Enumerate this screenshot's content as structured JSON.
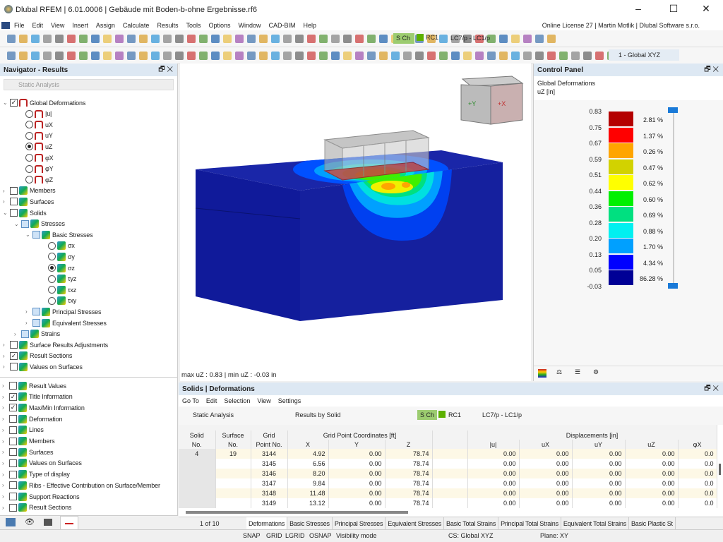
{
  "window": {
    "title": "Dlubal RFEM | 6.01.0006 | Gebäude mit Boden-b-ohne Ergebnisse.rf6",
    "minimize": "–",
    "maximize": "☐",
    "close": "✕"
  },
  "menu": {
    "items": [
      "File",
      "Edit",
      "View",
      "Insert",
      "Assign",
      "Calculate",
      "Results",
      "Tools",
      "Options",
      "Window",
      "CAD-BIM",
      "Help"
    ],
    "license": "Online License 27 | Martin Motlik | Dlubal Software s.r.o."
  },
  "toolbar": {
    "design_situation": "S Ch",
    "combo": "RC1",
    "load_case": "LC7/p - LC1/p",
    "coord_system": "1 - Global XYZ"
  },
  "navigator": {
    "title": "Navigator - Results",
    "analysis": "Static Analysis",
    "items": [
      {
        "label": "Global Deformations",
        "type": "check",
        "checked": true,
        "expanded": true,
        "level": 0,
        "icon": "deformation-icon"
      },
      {
        "label": "|u|",
        "type": "radio",
        "level": 1,
        "icon": "deformation-icon"
      },
      {
        "label": "uX",
        "type": "radio",
        "level": 1,
        "icon": "deformation-icon"
      },
      {
        "label": "uY",
        "type": "radio",
        "level": 1,
        "icon": "deformation-icon"
      },
      {
        "label": "uZ",
        "type": "radio",
        "checked": true,
        "level": 1,
        "icon": "deformation-icon"
      },
      {
        "label": "φX",
        "type": "radio",
        "level": 1,
        "icon": "deformation-icon"
      },
      {
        "label": "φY",
        "type": "radio",
        "level": 1,
        "icon": "deformation-icon"
      },
      {
        "label": "φZ",
        "type": "radio",
        "level": 1,
        "icon": "deformation-icon"
      },
      {
        "label": "Members",
        "type": "check",
        "collapsed": true,
        "level": 0,
        "icon": "members-icon"
      },
      {
        "label": "Surfaces",
        "type": "check",
        "collapsed": true,
        "level": 0,
        "icon": "surfaces-icon"
      },
      {
        "label": "Solids",
        "type": "check",
        "expanded": true,
        "level": 0,
        "icon": "solid-icon"
      },
      {
        "label": "Stresses",
        "type": "check",
        "blue": true,
        "expanded": true,
        "level": 1,
        "icon": "solid-icon"
      },
      {
        "label": "Basic Stresses",
        "type": "check",
        "blue": true,
        "expanded": true,
        "level": 2,
        "icon": "solid-icon"
      },
      {
        "label": "σx",
        "type": "radio",
        "level": 3,
        "icon": "solid-icon"
      },
      {
        "label": "σy",
        "type": "radio",
        "level": 3,
        "icon": "solid-icon"
      },
      {
        "label": "σz",
        "type": "radio",
        "checked": true,
        "level": 3,
        "icon": "solid-icon"
      },
      {
        "label": "τyz",
        "type": "radio",
        "level": 3,
        "icon": "solid-icon"
      },
      {
        "label": "τxz",
        "type": "radio",
        "level": 3,
        "icon": "solid-icon"
      },
      {
        "label": "τxy",
        "type": "radio",
        "level": 3,
        "icon": "solid-icon"
      },
      {
        "label": "Principal Stresses",
        "type": "check",
        "blue": true,
        "collapsed": true,
        "level": 2,
        "icon": "solid-icon"
      },
      {
        "label": "Equivalent Stresses",
        "type": "check",
        "blue": true,
        "collapsed": true,
        "level": 2,
        "icon": "solid-icon"
      },
      {
        "label": "Strains",
        "type": "check",
        "blue": true,
        "collapsed": true,
        "level": 1,
        "icon": "solid-icon"
      },
      {
        "label": "Surface Results Adjustments",
        "type": "check",
        "collapsed": true,
        "level": 0,
        "icon": "adjustment-icon"
      },
      {
        "label": "Result Sections",
        "type": "check",
        "checked": true,
        "collapsed": true,
        "level": 0,
        "icon": "section-icon"
      },
      {
        "label": "Values on Surfaces",
        "type": "check",
        "collapsed": true,
        "level": 0,
        "icon": "values-icon"
      }
    ],
    "display_items": [
      {
        "label": "Result Values",
        "checked": false
      },
      {
        "label": "Title Information",
        "checked": true
      },
      {
        "label": "Max/Min Information",
        "checked": true
      },
      {
        "label": "Deformation",
        "checked": false
      },
      {
        "label": "Lines",
        "checked": false
      },
      {
        "label": "Members",
        "checked": false
      },
      {
        "label": "Surfaces",
        "checked": false
      },
      {
        "label": "Values on Surfaces",
        "checked": false
      },
      {
        "label": "Type of display",
        "checked": false
      },
      {
        "label": "Ribs - Effective Contribution on Surface/Member",
        "checked": false
      },
      {
        "label": "Support Reactions",
        "checked": false
      },
      {
        "label": "Result Sections",
        "checked": false
      }
    ]
  },
  "viewport": {
    "maxmin": "max uZ : 0.83 | min uZ : -0.03 in",
    "cube_labels": [
      "+Y",
      "+X"
    ]
  },
  "control_panel": {
    "title": "Control Panel",
    "result": "Global Deformations",
    "unit": "uZ [in]",
    "scale_values": [
      "0.83",
      "0.75",
      "0.67",
      "0.59",
      "0.51",
      "0.44",
      "0.36",
      "0.28",
      "0.20",
      "0.13",
      "0.05",
      "-0.03"
    ],
    "bands": [
      {
        "color": "#b40000",
        "pct": "2.81 %"
      },
      {
        "color": "#ff0000",
        "pct": "1.37 %"
      },
      {
        "color": "#ffa500",
        "pct": "0.26 %"
      },
      {
        "color": "#d2d200",
        "pct": "0.47 %"
      },
      {
        "color": "#ffff00",
        "pct": "0.62 %"
      },
      {
        "color": "#00f000",
        "pct": "0.60 %"
      },
      {
        "color": "#00e080",
        "pct": "0.69 %"
      },
      {
        "color": "#00f0f0",
        "pct": "0.88 %"
      },
      {
        "color": "#00a0ff",
        "pct": "1.70 %"
      },
      {
        "color": "#0000ff",
        "pct": "4.34 %"
      },
      {
        "color": "#000096",
        "pct": "86.28 %"
      }
    ]
  },
  "table_panel": {
    "title": "Solids | Deformations",
    "menu": [
      "Go To",
      "Edit",
      "Selection",
      "View",
      "Settings"
    ],
    "analysis": "Static Analysis",
    "results_by": "Results by Solid",
    "design_situation": "S Ch",
    "combo": "RC1",
    "load_case": "LC7/p - LC1/p",
    "group_headers": {
      "coords": "Grid Point Coordinates [ft]",
      "disp": "Displacements [in]"
    },
    "headers": [
      [
        "Solid",
        "No."
      ],
      [
        "Surface",
        "No."
      ],
      [
        "Grid",
        "Point No."
      ],
      [
        "",
        "X"
      ],
      [
        "",
        "Y"
      ],
      [
        "",
        "Z"
      ],
      [
        "",
        ""
      ],
      [
        "",
        "|u|"
      ],
      [
        "",
        "uX"
      ],
      [
        "",
        "uY"
      ],
      [
        "",
        "uZ"
      ],
      [
        "",
        "φX"
      ]
    ],
    "rows": [
      [
        "4",
        "19",
        "3144",
        "4.92",
        "0.00",
        "78.74",
        "",
        "0.00",
        "0.00",
        "0.00",
        "0.00",
        "0.0"
      ],
      [
        "",
        "",
        "3145",
        "6.56",
        "0.00",
        "78.74",
        "",
        "0.00",
        "0.00",
        "0.00",
        "0.00",
        "0.0"
      ],
      [
        "",
        "",
        "3146",
        "8.20",
        "0.00",
        "78.74",
        "",
        "0.00",
        "0.00",
        "0.00",
        "0.00",
        "0.0"
      ],
      [
        "",
        "",
        "3147",
        "9.84",
        "0.00",
        "78.74",
        "",
        "0.00",
        "0.00",
        "0.00",
        "0.00",
        "0.0"
      ],
      [
        "",
        "",
        "3148",
        "11.48",
        "0.00",
        "78.74",
        "",
        "0.00",
        "0.00",
        "0.00",
        "0.00",
        "0.0"
      ],
      [
        "",
        "",
        "3149",
        "13.12",
        "0.00",
        "78.74",
        "",
        "0.00",
        "0.00",
        "0.00",
        "0.00",
        "0.0"
      ]
    ],
    "pager": "1 of 10",
    "tabs": [
      "Deformations",
      "Basic Stresses",
      "Principal Stresses",
      "Equivalent Stresses",
      "Basic Total Strains",
      "Principal Total Strains",
      "Equivalent Total Strains",
      "Basic Plastic St"
    ]
  },
  "status": {
    "snap": "SNAP",
    "grid": "GRID",
    "lgrid": "LGRID",
    "osnap": "OSNAP",
    "visibility": "Visibility mode",
    "cs": "CS: Global XYZ",
    "plane": "Plane: XY"
  }
}
